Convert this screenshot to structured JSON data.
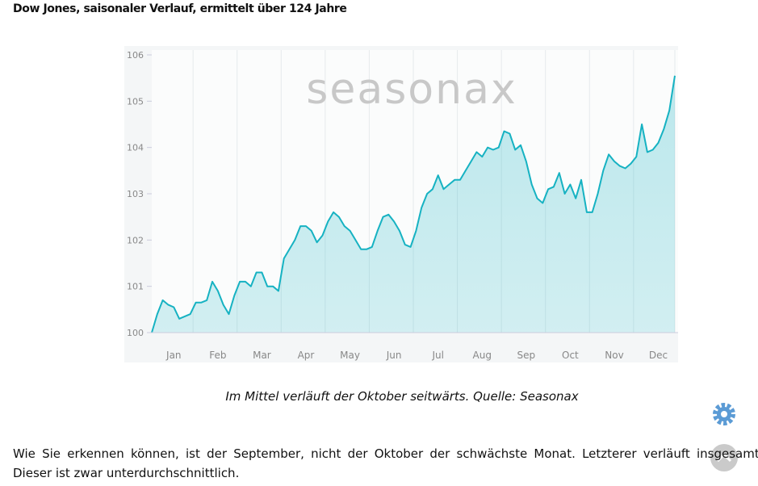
{
  "header": {
    "title": "Dow Jones, saisonaler Verlauf, ermittelt über 124 Jahre"
  },
  "chart_data": {
    "type": "line",
    "watermark": "seasonax",
    "categories": [
      null,
      null,
      null,
      null,
      "Jan",
      null,
      null,
      null,
      null,
      null,
      null,
      null,
      "Feb",
      null,
      null,
      null,
      null,
      null,
      null,
      null,
      "Mar",
      null,
      null,
      null,
      null,
      null,
      null,
      null,
      "Apr",
      null,
      null,
      null,
      null,
      null,
      null,
      null,
      "May",
      null,
      null,
      null,
      null,
      null,
      null,
      null,
      "Jun",
      null,
      null,
      null,
      null,
      null,
      null,
      null,
      "Jul",
      null,
      null,
      null,
      null,
      null,
      null,
      null,
      "Aug",
      null,
      null,
      null,
      null,
      null,
      null,
      null,
      "Sep",
      null,
      null,
      null,
      null,
      null,
      null,
      null,
      "Oct",
      null,
      null,
      null,
      null,
      null,
      null,
      null,
      "Nov",
      null,
      null,
      null,
      null,
      null,
      null,
      null,
      "Dec",
      null,
      null,
      null
    ],
    "series": [
      {
        "color": "#16b2c2",
        "values": [
          100.0,
          100.4,
          100.7,
          100.6,
          100.55,
          100.3,
          100.35,
          100.4,
          100.65,
          100.65,
          100.7,
          101.1,
          100.9,
          100.6,
          100.4,
          100.8,
          101.1,
          101.1,
          101.0,
          101.3,
          101.3,
          101.0,
          101.0,
          100.9,
          101.6,
          101.8,
          102.0,
          102.3,
          102.3,
          102.2,
          101.95,
          102.1,
          102.4,
          102.6,
          102.5,
          102.3,
          102.2,
          102.0,
          101.8,
          101.8,
          101.85,
          102.2,
          102.5,
          102.55,
          102.4,
          102.2,
          101.9,
          101.85,
          102.2,
          102.7,
          103.0,
          103.1,
          103.4,
          103.1,
          103.2,
          103.3,
          103.3,
          103.5,
          103.7,
          103.9,
          103.8,
          104.0,
          103.95,
          104.0,
          104.35,
          104.3,
          103.95,
          104.05,
          103.7,
          103.2,
          102.9,
          102.8,
          103.1,
          103.15,
          103.45,
          103.0,
          103.2,
          102.9,
          103.3,
          102.6,
          102.6,
          103.0,
          103.5,
          103.85,
          103.7,
          103.6,
          103.55,
          103.65,
          103.8,
          104.5,
          103.9,
          103.95,
          104.1,
          104.4,
          104.8,
          105.55
        ]
      }
    ],
    "ylim": [
      100,
      106
    ],
    "yticks": [
      100,
      101,
      102,
      103,
      104,
      105,
      106
    ],
    "grid": true
  },
  "caption": "Im Mittel verläuft der Oktober seitwärts. Quelle: Seasonax",
  "body": [
    "Wie Sie erkennen können, ist der September, nicht der Oktober der schwächste Monat. Letzterer verläuft insgesamt seit",
    "Dieser ist zwar unterdurchschnittlich."
  ]
}
